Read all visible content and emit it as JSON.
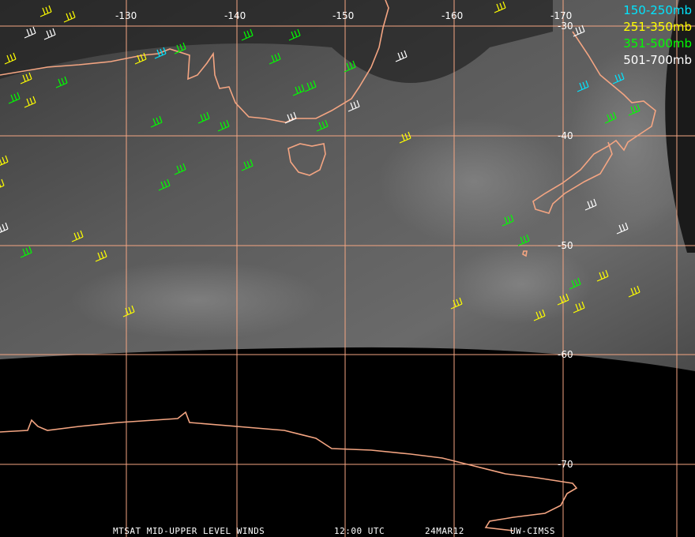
{
  "map": {
    "longitude_labels": [
      "-130",
      "-140",
      "-150",
      "-160",
      "-170"
    ],
    "latitude_labels": [
      "-30",
      "-40",
      "-50",
      "-60",
      "-70"
    ],
    "legend": [
      "150-250mb",
      "251-350mb",
      "351-500mb",
      "501-700mb"
    ],
    "footer": [
      "MTSAT MID-UPPER LEVEL WINDS",
      "12:00 UTC",
      "24MAR12",
      "UW-CIMSS"
    ]
  }
}
